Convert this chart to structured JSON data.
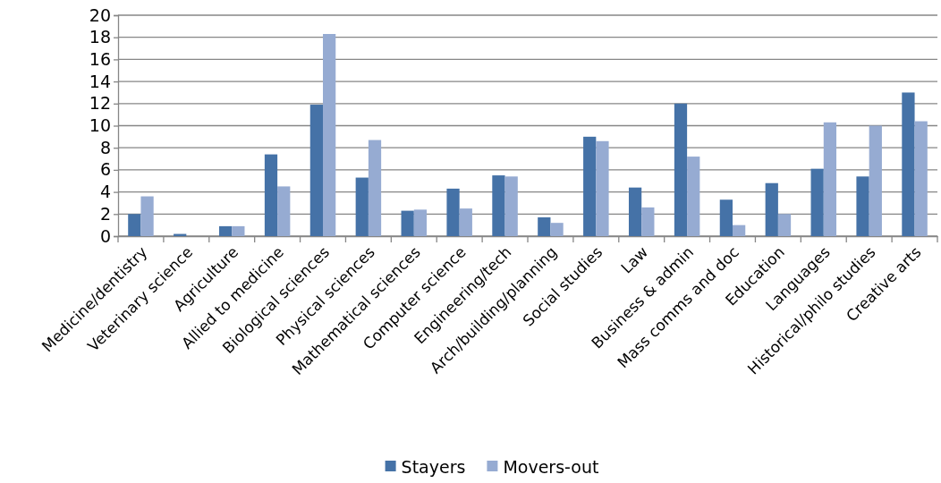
{
  "chart_data": {
    "type": "bar",
    "categories": [
      "Medicine/dentistry",
      "Veterinary science",
      "Agriculture",
      "Allied to medicine",
      "Biological sciences",
      "Physical sciences",
      "Mathematical sciences",
      "Computer science",
      "Engineering/tech",
      "Arch/building/planning",
      "Social studies",
      "Law",
      "Business & admin",
      "Mass comms and doc",
      "Education",
      "Languages",
      "Historical/philo studies",
      "Creative arts"
    ],
    "series": [
      {
        "name": "Stayers",
        "color": "#4572a7",
        "values": [
          2.0,
          0.2,
          0.9,
          7.4,
          11.9,
          5.3,
          2.3,
          4.3,
          5.5,
          1.7,
          9.0,
          4.4,
          12.0,
          3.3,
          4.8,
          6.1,
          5.4,
          13.0
        ]
      },
      {
        "name": "Movers-out",
        "color": "#96abd2",
        "values": [
          3.6,
          0,
          0.9,
          4.5,
          18.3,
          8.7,
          2.4,
          2.5,
          5.4,
          1.2,
          8.6,
          2.6,
          7.2,
          1.0,
          2.0,
          10.3,
          10.0,
          10.4
        ]
      }
    ],
    "ylim": [
      0,
      20
    ],
    "yticks": [
      0,
      2,
      4,
      6,
      8,
      10,
      12,
      14,
      16,
      18,
      20
    ],
    "grid": "y",
    "legend": "bottom"
  }
}
